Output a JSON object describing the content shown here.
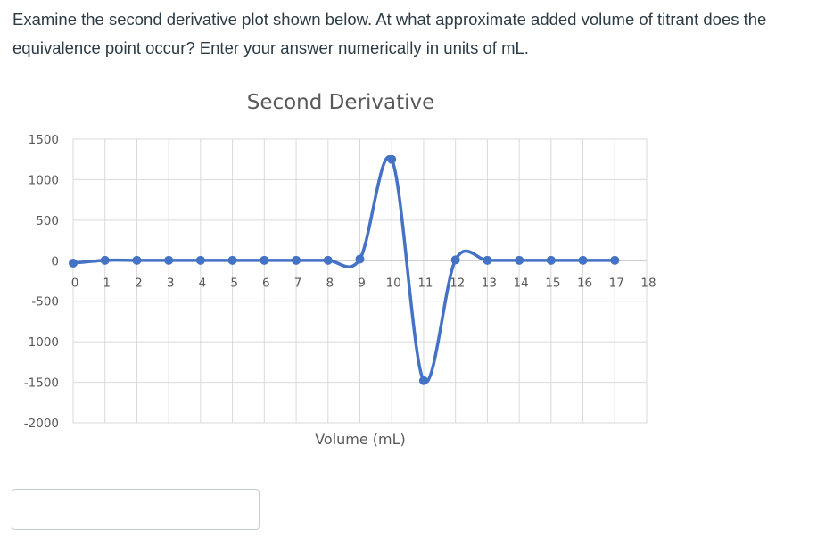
{
  "question": {
    "text": "Examine the second derivative plot shown below. At what approximate added volume of titrant does the equivalence point occur? Enter your answer numerically in units of mL."
  },
  "answer": {
    "value": "",
    "placeholder": ""
  },
  "colors": {
    "series": "#4472c4",
    "grid": "#d9d9d9",
    "text": "#595959",
    "question_text": "#2d3b45"
  },
  "chart_data": {
    "type": "scatter",
    "smooth": true,
    "title": "Second Derivative",
    "xlabel": "Volume (mL)",
    "ylabel": "",
    "xlim": [
      0,
      18
    ],
    "ylim": [
      -2000,
      1500
    ],
    "grid": true,
    "legend": "none",
    "x_ticks": [
      "0",
      "1",
      "2",
      "3",
      "4",
      "5",
      "6",
      "7",
      "8",
      "9",
      "10",
      "11",
      "12",
      "13",
      "14",
      "15",
      "16",
      "17",
      "18"
    ],
    "y_ticks": [
      "1500",
      "1000",
      "500",
      "0",
      "-500",
      "-1000",
      "-1500",
      "-2000"
    ],
    "series": [
      {
        "points": [
          {
            "x": 0,
            "y": -30
          },
          {
            "x": 1,
            "y": 5
          },
          {
            "x": 2,
            "y": 5
          },
          {
            "x": 3,
            "y": 5
          },
          {
            "x": 4,
            "y": 5
          },
          {
            "x": 5,
            "y": 5
          },
          {
            "x": 6,
            "y": 5
          },
          {
            "x": 7,
            "y": 5
          },
          {
            "x": 8,
            "y": 5
          },
          {
            "x": 9,
            "y": 20
          },
          {
            "x": 10,
            "y": 1250
          },
          {
            "x": 11,
            "y": -1480
          },
          {
            "x": 12,
            "y": 10
          },
          {
            "x": 13,
            "y": 5
          },
          {
            "x": 14,
            "y": 5
          },
          {
            "x": 15,
            "y": 5
          },
          {
            "x": 16,
            "y": 5
          },
          {
            "x": 17,
            "y": 5
          }
        ]
      }
    ]
  }
}
